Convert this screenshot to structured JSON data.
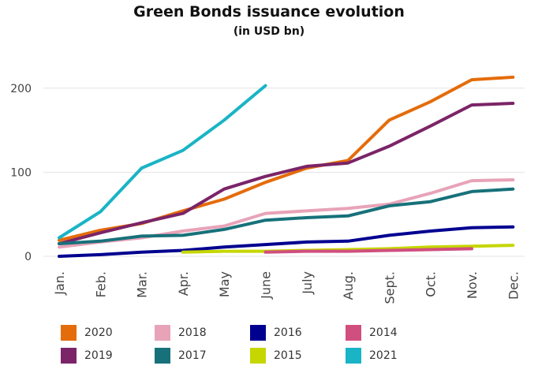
{
  "chart_data": {
    "type": "line",
    "title": "Green Bonds issuance evolution",
    "subtitle": "(in USD bn)",
    "categories": [
      "Jan.",
      "Feb.",
      "Mar.",
      "Apr.",
      "May",
      "June",
      "July",
      "Aug.",
      "Sept.",
      "Oct.",
      "Nov.",
      "Dec."
    ],
    "yticks": [
      0,
      100,
      200
    ],
    "ylim": [
      0,
      220
    ],
    "grid": "horizontal",
    "legend_position": "bottom",
    "series": [
      {
        "name": "2020",
        "color": "#E46C0A",
        "values": [
          19,
          31,
          39,
          54,
          68,
          88,
          105,
          114,
          162,
          184,
          210,
          213
        ]
      },
      {
        "name": "2019",
        "color": "#7B2468",
        "values": [
          15,
          28,
          40,
          51,
          80,
          95,
          107,
          111,
          131,
          155,
          180,
          182
        ]
      },
      {
        "name": "2018",
        "color": "#E8A3B8",
        "values": [
          11,
          17,
          22,
          30,
          36,
          51,
          54,
          57,
          62,
          75,
          90,
          91
        ]
      },
      {
        "name": "2017",
        "color": "#17717A",
        "values": [
          15,
          18,
          24,
          25,
          32,
          43,
          46,
          48,
          60,
          65,
          77,
          80
        ]
      },
      {
        "name": "2016",
        "color": "#000090",
        "values": [
          0,
          2,
          5,
          7,
          11,
          14,
          17,
          18,
          25,
          30,
          34,
          35
        ]
      },
      {
        "name": "2015",
        "color": "#C5D600",
        "values": [
          null,
          null,
          null,
          5,
          6,
          6,
          7,
          8,
          9,
          11,
          12,
          13
        ]
      },
      {
        "name": "2014",
        "color": "#D04F7F",
        "values": [
          null,
          null,
          null,
          null,
          null,
          5,
          6,
          6,
          7,
          8,
          9,
          null
        ]
      },
      {
        "name": "2021",
        "color": "#19B4C6",
        "values": [
          22,
          53,
          105,
          126,
          162,
          203,
          null,
          null,
          null,
          null,
          null,
          null
        ]
      }
    ],
    "legend_order": [
      "2020",
      "2018",
      "2016",
      "2014",
      "2019",
      "2017",
      "2015",
      "2021"
    ]
  }
}
